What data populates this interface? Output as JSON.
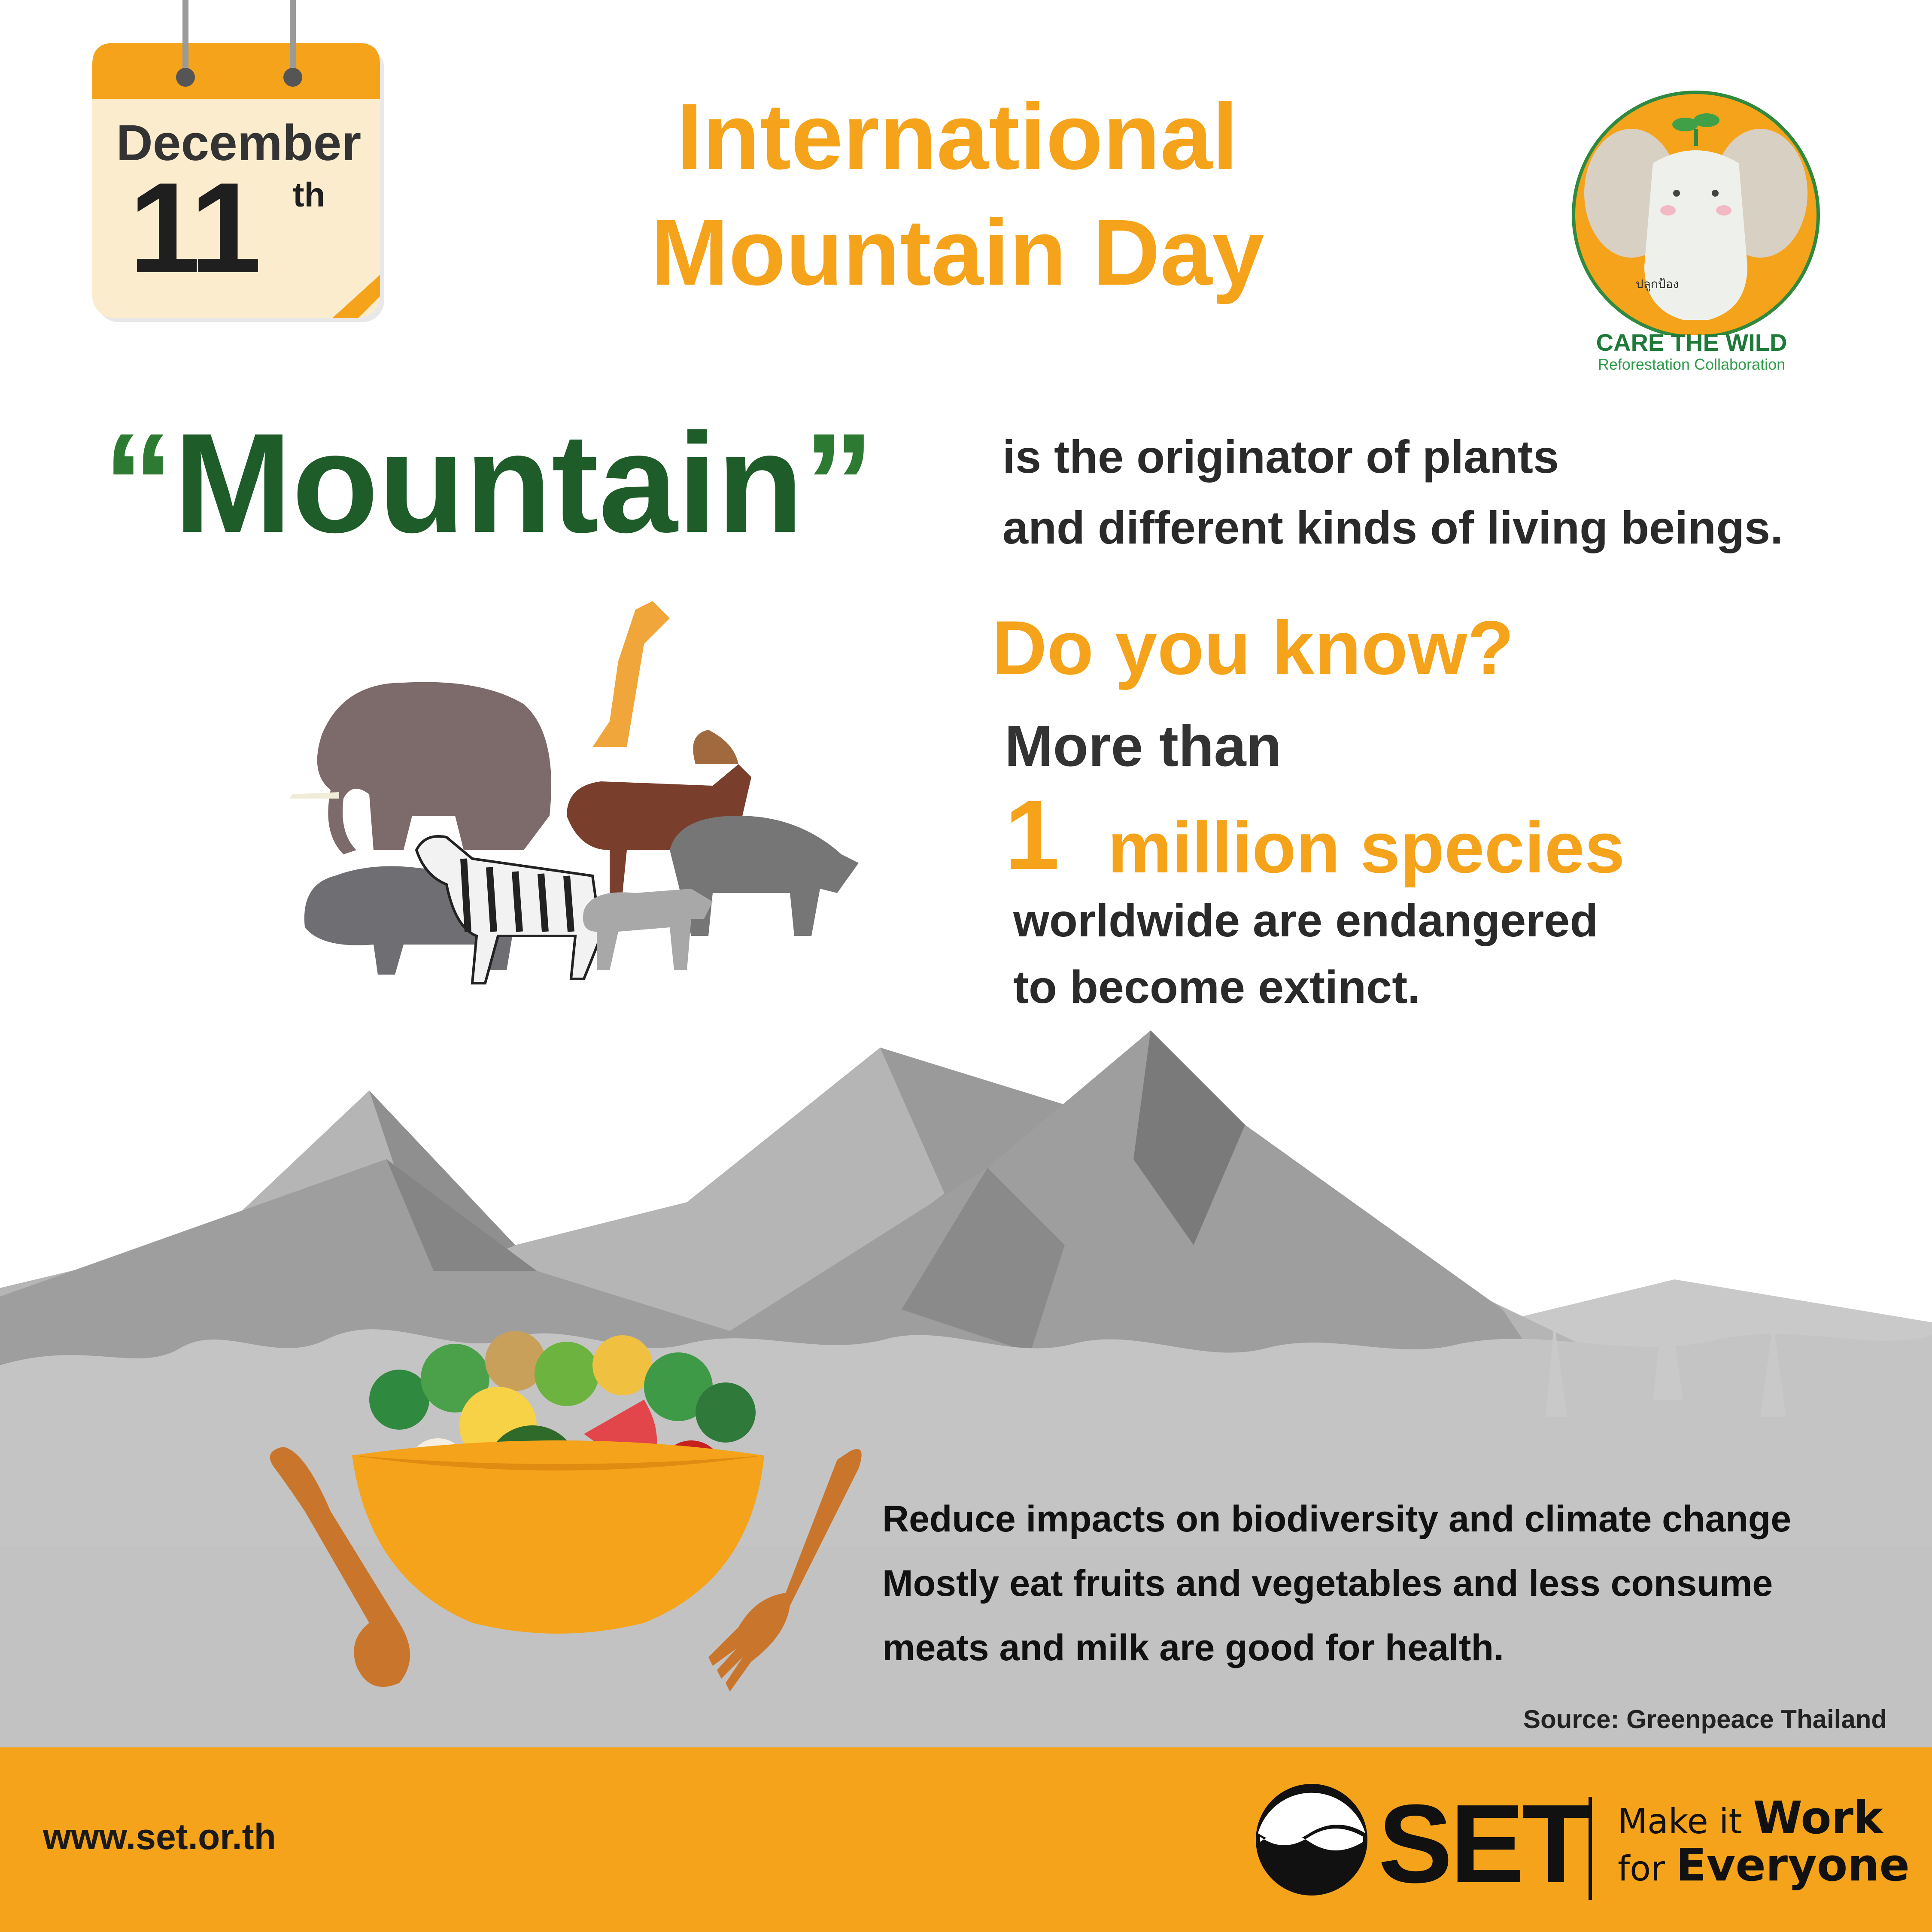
{
  "calendar": {
    "month": "December",
    "day": "11",
    "suffix": "th"
  },
  "title": {
    "line1": "International",
    "line2": "Mountain Day"
  },
  "logo": {
    "thai_text": "ปลูกป้อง",
    "name": "CARE THE WILD",
    "subtitle": "Reforestation Collaboration"
  },
  "headline": {
    "open_quote": "“",
    "word": "Mountain",
    "close_quote": "”",
    "line1": "is the originator of plants",
    "line2": "and different kinds of living beings."
  },
  "fact": {
    "question": "Do you know?",
    "intro": "More than",
    "number": "1",
    "unit": "million species",
    "line1": "worldwide are endangered",
    "line2": "to become extinct."
  },
  "tips": {
    "line1": "Reduce impacts on biodiversity and climate change",
    "line2": "Mostly eat fruits and vegetables and less consume",
    "line3": "meats and milk are good for health."
  },
  "source": "Source: Greenpeace Thailand",
  "footer": {
    "website": "www.set.or.th",
    "brand": "SET",
    "tagline_prefix1": "Make it ",
    "tagline_bold1": "Work",
    "tagline_prefix2": "for ",
    "tagline_bold2": "Everyone"
  },
  "colors": {
    "accent_orange": "#f5a31a",
    "headline_green": "#1e5c2a",
    "logo_green": "#1f7a3a",
    "mountain_gray": "#8c8c8c"
  },
  "icons": [
    "calendar-icon",
    "elephant-logo-icon",
    "animals-illustration",
    "mountains-illustration",
    "salad-bowl-illustration",
    "set-logo-icon"
  ]
}
